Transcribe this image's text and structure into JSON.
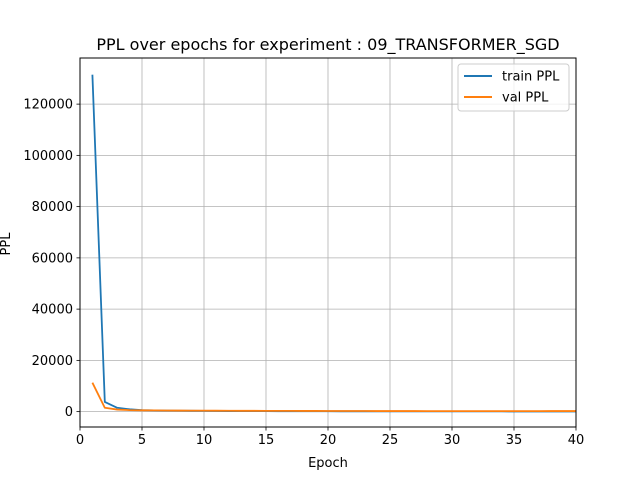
{
  "chart_data": {
    "type": "line",
    "title": "PPL over epochs for experiment : 09_TRANSFORMER_SGD",
    "xlabel": "Epoch",
    "ylabel": "PPL",
    "xlim": [
      0,
      40
    ],
    "ylim": [
      -6000,
      138000
    ],
    "xticks": [
      0,
      5,
      10,
      15,
      20,
      25,
      30,
      35,
      40
    ],
    "yticks": [
      0,
      20000,
      40000,
      60000,
      80000,
      100000,
      120000
    ],
    "grid": true,
    "legend_position": "top-right",
    "series": [
      {
        "name": "train PPL",
        "color": "#1f77b4",
        "x": [
          1,
          2,
          3,
          4,
          5,
          6,
          7,
          8,
          9,
          10,
          11,
          12,
          13,
          14,
          15,
          16,
          17,
          18,
          19,
          20,
          21,
          22,
          23,
          24,
          25,
          26,
          27,
          28,
          29,
          30,
          31,
          32,
          33,
          34,
          35,
          36,
          37,
          38,
          39,
          40
        ],
        "values": [
          131500,
          3800,
          1500,
          900,
          600,
          480,
          400,
          350,
          310,
          280,
          250,
          230,
          210,
          195,
          180,
          170,
          160,
          150,
          142,
          135,
          128,
          122,
          117,
          112,
          108,
          104,
          100,
          97,
          94,
          91,
          88,
          86,
          84,
          82,
          80,
          78,
          76,
          74,
          72,
          70
        ]
      },
      {
        "name": "val PPL",
        "color": "#ff7f0e",
        "x": [
          1,
          2,
          3,
          4,
          5,
          6,
          7,
          8,
          9,
          10,
          11,
          12,
          13,
          14,
          15,
          16,
          17,
          18,
          19,
          20,
          21,
          22,
          23,
          24,
          25,
          26,
          27,
          28,
          29,
          30,
          31,
          32,
          33,
          34,
          35,
          36,
          37,
          38,
          39,
          40
        ],
        "values": [
          11300,
          1500,
          800,
          600,
          520,
          480,
          450,
          420,
          400,
          380,
          360,
          340,
          320,
          310,
          300,
          290,
          280,
          270,
          260,
          250,
          245,
          240,
          235,
          230,
          225,
          220,
          215,
          210,
          205,
          200,
          200,
          200,
          200,
          200,
          200,
          205,
          210,
          215,
          220,
          225
        ]
      }
    ]
  }
}
